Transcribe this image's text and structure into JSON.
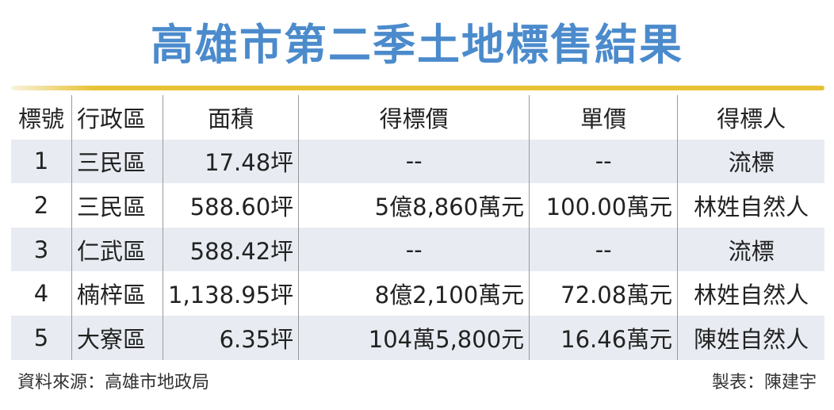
{
  "title": "高雄市第二季土地標售結果",
  "colors": {
    "title": "#4b8bcc",
    "rule": "#e8c235",
    "stripe": "#e8ecf2"
  },
  "table": {
    "headers": [
      "標號",
      "行政區",
      "面積",
      "得標價",
      "單價",
      "得標人"
    ],
    "rows": [
      [
        "1",
        "三民區",
        "17.48坪",
        "--",
        "--",
        "流標"
      ],
      [
        "2",
        "三民區",
        "588.60坪",
        "5億8,860萬元",
        "100.00萬元",
        "林姓自然人"
      ],
      [
        "3",
        "仁武區",
        "588.42坪",
        "--",
        "--",
        "流標"
      ],
      [
        "4",
        "楠梓區",
        "1,138.95坪",
        "8億2,100萬元",
        "72.08萬元",
        "林姓自然人"
      ],
      [
        "5",
        "大寮區",
        "6.35坪",
        "104萬5,800元",
        "16.46萬元",
        "陳姓自然人"
      ]
    ]
  },
  "footer": {
    "source": "資料來源：高雄市地政局",
    "credit": "製表：陳建宇"
  }
}
